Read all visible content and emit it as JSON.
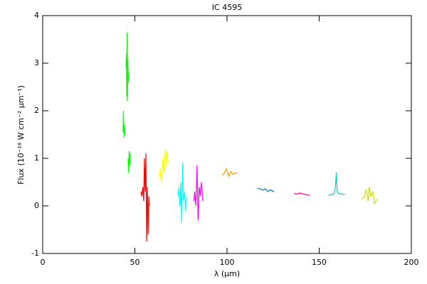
{
  "chart_data": {
    "type": "line",
    "title": "IC 4595",
    "xlabel": "λ (μm)",
    "ylabel": "Flux (10⁻¹⁸ W cm⁻² μm⁻¹)",
    "xlim": [
      0,
      200
    ],
    "xticks": [
      0,
      50,
      100,
      150,
      200
    ],
    "ylim": [
      -1,
      4
    ],
    "yticks": [
      -1,
      0,
      1,
      2,
      3,
      4
    ],
    "series": [
      {
        "color": "#00ff00",
        "x": [
          43.6,
          43.8,
          44.0,
          44.2,
          44.4,
          44.6,
          44.8
        ],
        "values": [
          1.55,
          2.0,
          1.6,
          1.45,
          1.7,
          1.5,
          1.55
        ]
      },
      {
        "color": "#00ff00",
        "x": [
          45.2,
          45.4,
          45.6,
          45.8,
          46.0,
          46.2,
          46.4,
          46.6
        ],
        "values": [
          2.9,
          3.2,
          2.3,
          3.65,
          2.2,
          3.1,
          2.6,
          2.8
        ]
      },
      {
        "color": "#00ff00",
        "x": [
          46.3,
          46.6,
          46.9,
          47.2,
          47.5
        ],
        "values": [
          1.0,
          0.7,
          1.15,
          0.85,
          1.1
        ]
      },
      {
        "color": "#ff0000",
        "x": [
          53.3,
          53.8,
          54.3,
          54.8,
          55.2,
          55.6,
          56.0,
          56.4,
          56.8,
          57.2,
          57.6,
          57.9
        ],
        "values": [
          0.3,
          0.2,
          0.4,
          0.1,
          1.0,
          0.3,
          1.1,
          -0.75,
          0.4,
          -0.6,
          0.2,
          0.0
        ]
      },
      {
        "color": "#ffff00",
        "x": [
          63.3,
          63.9,
          64.5,
          65.1,
          65.7,
          66.3,
          66.9,
          67.5,
          68.0
        ],
        "values": [
          0.6,
          0.8,
          0.5,
          1.0,
          0.7,
          1.2,
          0.8,
          1.15,
          0.9
        ]
      },
      {
        "color": "#00ffff",
        "x": [
          73.4,
          73.9,
          74.4,
          74.9,
          75.4,
          75.9,
          76.4,
          77.0,
          77.5,
          78.0
        ],
        "values": [
          0.2,
          0.4,
          0.0,
          0.5,
          -0.35,
          0.9,
          0.1,
          0.3,
          -0.1,
          0.2
        ]
      },
      {
        "color": "#ff00ff",
        "x": [
          81.9,
          82.5,
          83.1,
          83.7,
          84.3,
          84.9,
          85.5,
          86.1,
          86.9
        ],
        "values": [
          0.1,
          0.3,
          0.0,
          0.85,
          -0.3,
          0.4,
          0.2,
          0.5,
          0.1
        ]
      },
      {
        "color": "#ff9900",
        "x": [
          97.3,
          98.5,
          99.7,
          100.9,
          102.1,
          103.3,
          104.5,
          105.4
        ],
        "values": [
          0.65,
          0.68,
          0.78,
          0.62,
          0.72,
          0.66,
          0.7,
          0.68
        ]
      },
      {
        "color": "#0080c0",
        "x": [
          116.6,
          118,
          119.4,
          120.8,
          122.2,
          123.6,
          125.0,
          125.5
        ],
        "values": [
          0.37,
          0.36,
          0.33,
          0.36,
          0.3,
          0.34,
          0.3,
          0.32
        ]
      },
      {
        "color": "#ff0090",
        "x": [
          136.3,
          138,
          139.7,
          141.4,
          143.1,
          144.8
        ],
        "values": [
          0.26,
          0.25,
          0.27,
          0.25,
          0.24,
          0.22
        ]
      },
      {
        "color": "#00d0c0",
        "x": [
          155,
          156.5,
          158,
          158.8,
          159.3,
          159.8,
          160.5,
          162,
          164
        ],
        "values": [
          0.22,
          0.24,
          0.25,
          0.4,
          0.7,
          0.3,
          0.26,
          0.25,
          0.24
        ]
      },
      {
        "color": "#c8e000",
        "x": [
          173,
          174.5,
          175.5,
          176.5,
          177.2,
          178,
          179,
          180,
          181.5
        ],
        "values": [
          0.15,
          0.18,
          0.35,
          0.1,
          0.4,
          0.2,
          0.3,
          0.05,
          0.15
        ]
      }
    ]
  }
}
